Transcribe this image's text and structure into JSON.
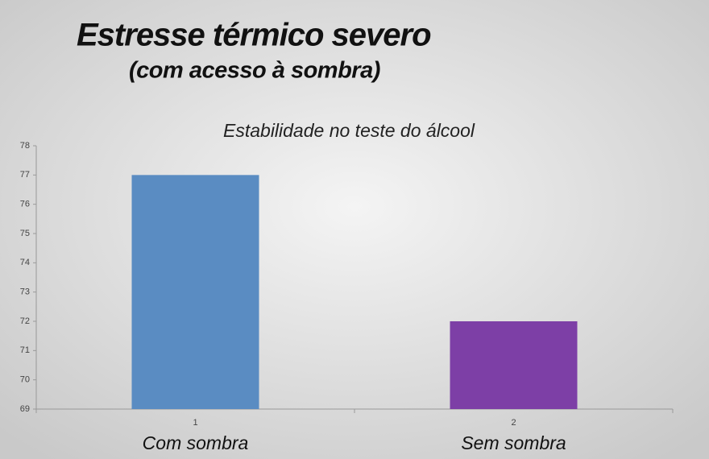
{
  "chart_data": {
    "type": "bar",
    "title": "Estresse térmico severo",
    "subtitle": "(com acesso à sombra)",
    "chart_title": "Estabilidade no teste do álcool",
    "categories": [
      "1",
      "2"
    ],
    "category_labels": [
      "Com sombra",
      "Sem sombra"
    ],
    "values": [
      77,
      72
    ],
    "colors": [
      "#5a8cc2",
      "#7d3fa6"
    ],
    "ylim": [
      69,
      78
    ],
    "yticks": [
      69,
      70,
      71,
      72,
      73,
      74,
      75,
      76,
      77,
      78
    ],
    "grid": false
  }
}
